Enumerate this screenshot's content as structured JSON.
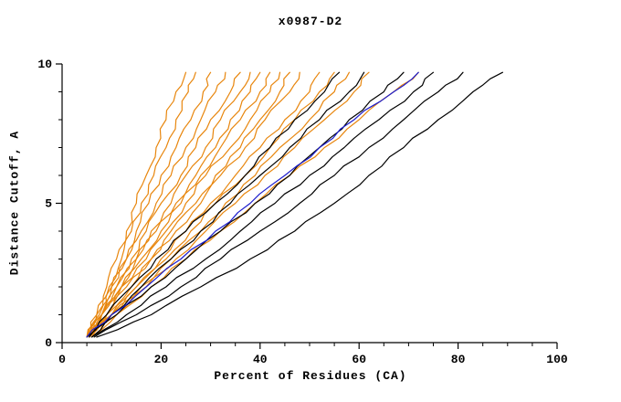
{
  "chart_data": {
    "type": "line",
    "title": "x0987-D2",
    "xlabel": "Percent of Residues (CA)",
    "ylabel": "Distance Cutoff, A",
    "xlim": [
      0,
      100
    ],
    "ylim": [
      0,
      10
    ],
    "xticks": [
      0,
      20,
      40,
      60,
      80,
      100
    ],
    "xminor": [
      5,
      10,
      15,
      25,
      30,
      35,
      45,
      50,
      55,
      65,
      70,
      75,
      85,
      90,
      95
    ],
    "yticks": [
      0,
      5,
      10
    ],
    "yminor": [
      1,
      2,
      3,
      4,
      6,
      7,
      8,
      9
    ],
    "grid": false,
    "legend": "none",
    "colors": {
      "orange": "#e8860d",
      "black": "#000000",
      "blue": "#1c1ccd",
      "axis": "#000000"
    },
    "y_levels": [
      0.2,
      1,
      2,
      3,
      4,
      5,
      6,
      7,
      8,
      9,
      9.7
    ],
    "series": [
      {
        "id": "orange-1",
        "group": "orange",
        "x": [
          5,
          7,
          9,
          11,
          13,
          15,
          17,
          19,
          21,
          23,
          25
        ]
      },
      {
        "id": "orange-2",
        "group": "orange",
        "x": [
          5,
          7,
          9.5,
          12,
          14,
          16,
          18.5,
          21,
          23,
          25.5,
          27
        ]
      },
      {
        "id": "orange-3",
        "group": "orange",
        "x": [
          5.5,
          8,
          10,
          13,
          15,
          17.5,
          20,
          23,
          26,
          28.5,
          30
        ]
      },
      {
        "id": "orange-4",
        "group": "orange",
        "x": [
          5,
          7.5,
          10,
          13,
          16,
          19,
          22,
          25,
          28,
          31,
          33
        ]
      },
      {
        "id": "orange-5",
        "group": "orange",
        "x": [
          5,
          8,
          11,
          14,
          17,
          20,
          24,
          27,
          30,
          34,
          36
        ]
      },
      {
        "id": "orange-6",
        "group": "orange",
        "x": [
          5.5,
          8,
          11,
          15,
          18,
          22,
          25,
          29,
          32,
          36,
          38
        ]
      },
      {
        "id": "orange-7",
        "group": "orange",
        "x": [
          5,
          8,
          12,
          15,
          19,
          23,
          27,
          31,
          34,
          38,
          40
        ]
      },
      {
        "id": "orange-8",
        "group": "orange",
        "x": [
          6,
          9,
          12,
          16,
          20,
          24,
          28,
          32,
          36,
          40,
          42
        ]
      },
      {
        "id": "orange-9",
        "group": "orange",
        "x": [
          5,
          8,
          12,
          17,
          21,
          25,
          29,
          34,
          38,
          42,
          44
        ]
      },
      {
        "id": "orange-10",
        "group": "orange",
        "x": [
          5.5,
          9,
          13,
          18,
          22,
          27,
          31,
          36,
          40,
          44,
          46
        ]
      },
      {
        "id": "orange-11",
        "group": "orange",
        "x": [
          5,
          9,
          14,
          18,
          23,
          28,
          32,
          37,
          41,
          46,
          48
        ]
      },
      {
        "id": "orange-12",
        "group": "orange",
        "x": [
          6,
          10,
          15,
          20,
          25,
          30,
          35,
          40,
          45,
          50,
          52
        ]
      },
      {
        "id": "orange-13",
        "group": "orange",
        "x": [
          5,
          10,
          15,
          21,
          26,
          31,
          37,
          42,
          47,
          52,
          55
        ]
      },
      {
        "id": "orange-14",
        "group": "orange",
        "x": [
          5.5,
          10,
          16,
          22,
          28,
          33,
          39,
          44,
          50,
          55,
          58
        ]
      },
      {
        "id": "orange-15",
        "group": "orange",
        "x": [
          6,
          11,
          17,
          23,
          29,
          35,
          41,
          47,
          53,
          59,
          62
        ]
      },
      {
        "id": "orange-16",
        "group": "orange",
        "x": [
          5,
          11,
          18,
          25,
          32,
          39,
          46,
          53,
          60,
          67,
          72
        ]
      },
      {
        "id": "black-1",
        "group": "black",
        "x": [
          5,
          9,
          14,
          19,
          25,
          31,
          37,
          42,
          47,
          53,
          56
        ]
      },
      {
        "id": "black-2",
        "group": "black",
        "x": [
          5.5,
          10,
          16,
          22,
          28,
          34,
          40,
          46,
          52,
          58,
          61
        ]
      },
      {
        "id": "black-3",
        "group": "black",
        "x": [
          6,
          11,
          18,
          25,
          32,
          39,
          46,
          52,
          58,
          65,
          69
        ]
      },
      {
        "id": "black-4",
        "group": "black",
        "x": [
          6,
          13,
          21,
          29,
          36,
          43,
          50,
          57,
          64,
          71,
          75
        ]
      },
      {
        "id": "black-5",
        "group": "black",
        "x": [
          6.5,
          15,
          24,
          32,
          40,
          48,
          55,
          62,
          69,
          76,
          81
        ]
      },
      {
        "id": "black-6",
        "group": "black",
        "x": [
          7,
          18,
          28,
          38,
          47,
          55,
          62,
          69,
          76,
          83,
          89
        ]
      },
      {
        "id": "blue-1",
        "group": "blue",
        "x": [
          5,
          10,
          17,
          24,
          31,
          38,
          45,
          52,
          59,
          67,
          72
        ]
      }
    ]
  }
}
